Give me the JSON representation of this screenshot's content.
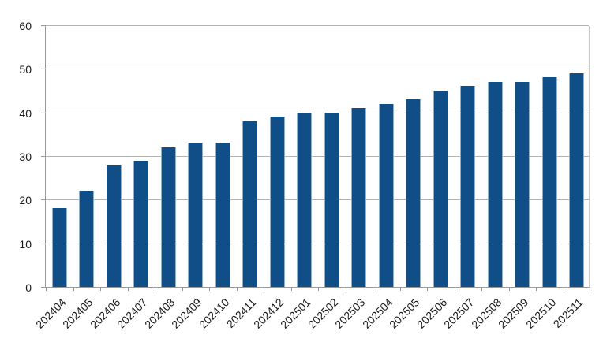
{
  "chart_data": {
    "type": "bar",
    "title": "",
    "xlabel": "",
    "ylabel": "",
    "categories": [
      "202404",
      "202405",
      "202406",
      "202407",
      "202408",
      "202409",
      "202410",
      "202411",
      "202412",
      "202501",
      "202502",
      "202503",
      "202504",
      "202505",
      "202506",
      "202507",
      "202508",
      "202509",
      "202510",
      "202511"
    ],
    "values": [
      18,
      22,
      28,
      29,
      32,
      33,
      33,
      38,
      39,
      40,
      40,
      41,
      42,
      43,
      45,
      46,
      47,
      47,
      48,
      49
    ],
    "ylim": [
      0,
      60
    ],
    "yticks": [
      0,
      10,
      20,
      30,
      40,
      50,
      60
    ],
    "grid": true,
    "legend_position": "none",
    "x_label_rotation_deg": -45,
    "colors": {
      "bar": "#0f4e87",
      "gridline": "#b3b3b3",
      "axis": "#9b9b9b",
      "plot_right_border": "#c8c8c8",
      "label_text": "#1a1a1a",
      "background": "#ffffff"
    }
  }
}
